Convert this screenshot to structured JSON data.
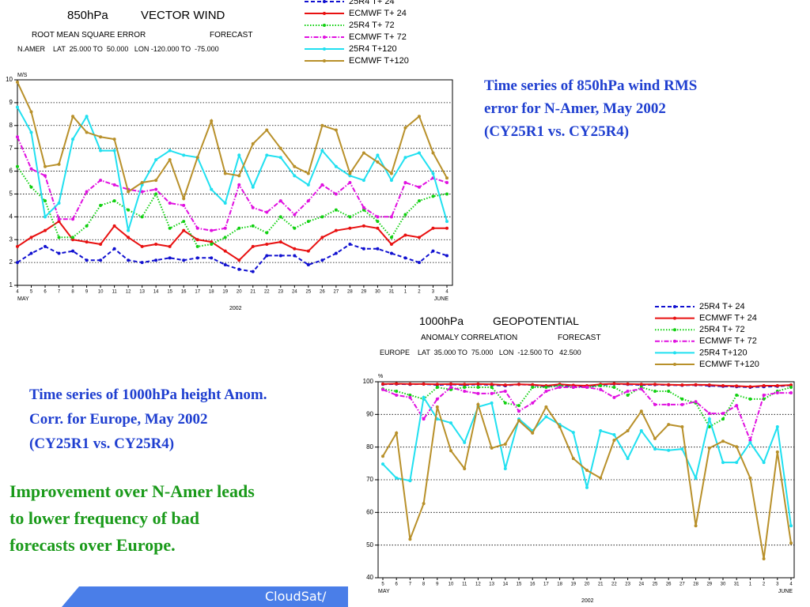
{
  "chart_data": [
    {
      "type": "line",
      "title": "850hPa",
      "subtitle": "VECTOR WIND",
      "metric": "ROOT MEAN SQUARE ERROR",
      "forecast_label": "FORECAST",
      "region": "N.AMER    LAT  25.000 TO  50.000   LON -120.000 TO  -75.000",
      "y_unit": "M/S",
      "months": [
        "MAY",
        "JUNE"
      ],
      "year": "2002",
      "categories": [
        "4",
        "5",
        "6",
        "7",
        "8",
        "9",
        "10",
        "11",
        "12",
        "13",
        "14",
        "15",
        "16",
        "17",
        "18",
        "19",
        "20",
        "21",
        "22",
        "23",
        "24",
        "25",
        "26",
        "27",
        "28",
        "29",
        "30",
        "31",
        "1",
        "2",
        "3",
        "4"
      ],
      "ylim": [
        1,
        10
      ],
      "yticks": [
        1,
        2,
        3,
        4,
        5,
        6,
        7,
        8,
        9,
        10
      ],
      "grid": true,
      "series": [
        {
          "name": "25R4  T+ 24",
          "color": "#1010d0",
          "dash": "dashed",
          "values": [
            2.0,
            2.4,
            2.7,
            2.4,
            2.5,
            2.1,
            2.1,
            2.6,
            2.1,
            2.0,
            2.1,
            2.2,
            2.1,
            2.2,
            2.2,
            1.9,
            1.7,
            1.6,
            2.3,
            2.3,
            2.3,
            1.9,
            2.1,
            2.4,
            2.8,
            2.6,
            2.6,
            2.4,
            2.2,
            2.0,
            2.5,
            2.3
          ]
        },
        {
          "name": "ECMWF  T+ 24",
          "color": "#e81010",
          "dash": "solid",
          "values": [
            2.7,
            3.1,
            3.4,
            3.8,
            3.0,
            2.9,
            2.8,
            3.6,
            3.1,
            2.7,
            2.8,
            2.7,
            3.4,
            3.0,
            2.9,
            2.5,
            2.1,
            2.7,
            2.8,
            2.9,
            2.6,
            2.5,
            3.1,
            3.4,
            3.5,
            3.6,
            3.5,
            2.8,
            3.2,
            3.1,
            3.5,
            3.5
          ]
        },
        {
          "name": "25R4  T+ 72",
          "color": "#10d010",
          "dash": "dotted",
          "values": [
            6.2,
            5.3,
            4.7,
            3.1,
            3.1,
            3.6,
            4.5,
            4.7,
            4.3,
            4.0,
            5.0,
            3.5,
            3.8,
            2.7,
            2.8,
            3.1,
            3.5,
            3.6,
            3.3,
            4.0,
            3.5,
            3.8,
            4.0,
            4.3,
            4.0,
            4.3,
            3.8,
            3.1,
            4.1,
            4.7,
            4.9,
            5.0
          ]
        },
        {
          "name": "ECMWF  T+ 72",
          "color": "#e010e0",
          "dash": "dashdot",
          "values": [
            7.5,
            6.1,
            5.8,
            3.9,
            3.9,
            5.1,
            5.6,
            5.4,
            5.2,
            5.1,
            5.2,
            4.6,
            4.5,
            3.5,
            3.4,
            3.5,
            5.4,
            4.4,
            4.2,
            4.7,
            4.1,
            4.7,
            5.4,
            5.0,
            5.5,
            4.4,
            4.0,
            4.0,
            5.5,
            5.3,
            5.7,
            5.5
          ]
        },
        {
          "name": "25R4  T+120",
          "color": "#20e0f0",
          "dash": "solid",
          "values": [
            8.8,
            7.7,
            4.0,
            4.6,
            7.4,
            8.4,
            6.9,
            6.9,
            3.4,
            5.4,
            6.5,
            6.9,
            6.7,
            6.6,
            5.2,
            4.6,
            6.7,
            5.3,
            6.7,
            6.6,
            5.8,
            5.4,
            6.9,
            6.2,
            5.8,
            5.6,
            6.7,
            5.6,
            6.6,
            6.8,
            5.9,
            3.8
          ]
        },
        {
          "name": "ECMWF  T+120",
          "color": "#b8902a",
          "dash": "solid",
          "values": [
            9.9,
            8.6,
            6.2,
            6.3,
            8.4,
            7.7,
            7.5,
            7.4,
            5.1,
            5.5,
            5.6,
            6.5,
            4.8,
            6.6,
            8.2,
            5.9,
            5.8,
            7.2,
            7.8,
            7.0,
            6.2,
            5.9,
            8.0,
            7.8,
            5.9,
            6.8,
            6.4,
            5.9,
            7.9,
            8.4,
            6.8,
            5.7
          ]
        }
      ]
    },
    {
      "type": "line",
      "title": "1000hPa",
      "subtitle": "GEOPOTENTIAL",
      "metric": "ANOMALY CORRELATION",
      "forecast_label": "FORECAST",
      "region": "EUROPE    LAT  35.000 TO  75.000   LON  -12.500 TO   42.500",
      "y_unit": "%",
      "months": [
        "MAY",
        "JUNE"
      ],
      "year": "2002",
      "categories": [
        "5",
        "6",
        "7",
        "8",
        "9",
        "10",
        "11",
        "12",
        "13",
        "14",
        "15",
        "16",
        "17",
        "18",
        "19",
        "20",
        "21",
        "22",
        "23",
        "24",
        "25",
        "26",
        "27",
        "28",
        "29",
        "30",
        "31",
        "1",
        "2",
        "3",
        "4"
      ],
      "ylim": [
        40,
        100
      ],
      "yticks": [
        40,
        50,
        60,
        70,
        80,
        90,
        100
      ],
      "grid": true,
      "series": [
        {
          "name": "25R4  T+ 24",
          "color": "#1010d0",
          "dash": "dashed",
          "values": [
            99.2,
            99.3,
            99.2,
            99.3,
            99.0,
            99.2,
            99.0,
            99.2,
            99.0,
            98.8,
            99.2,
            99.0,
            98.5,
            99.0,
            98.6,
            98.5,
            99.0,
            99.3,
            99.2,
            99.0,
            99.1,
            99.0,
            98.9,
            99.0,
            98.8,
            98.6,
            98.5,
            98.3,
            98.5,
            98.6,
            98.9
          ]
        },
        {
          "name": "ECMWF  T+ 24",
          "color": "#e81010",
          "dash": "solid",
          "values": [
            99.3,
            99.4,
            99.3,
            99.3,
            99.2,
            99.3,
            99.2,
            99.3,
            99.2,
            99.0,
            99.2,
            99.1,
            98.8,
            99.2,
            98.9,
            98.8,
            99.2,
            99.4,
            99.3,
            99.2,
            99.2,
            99.1,
            99.0,
            99.1,
            99.0,
            98.8,
            98.7,
            98.5,
            98.8,
            98.8,
            99.0
          ]
        },
        {
          "name": "25R4  T+ 72",
          "color": "#10d010",
          "dash": "dotted",
          "values": [
            97.8,
            97.1,
            95.9,
            94.7,
            98.3,
            97.6,
            98.3,
            98.3,
            98.3,
            93.5,
            92.7,
            98.3,
            98.3,
            98.8,
            98.3,
            98.3,
            98.8,
            98.3,
            95.9,
            98.3,
            97.1,
            97.1,
            94.7,
            93.5,
            86.2,
            88.6,
            95.9,
            94.7,
            94.7,
            97.1,
            98.3
          ]
        },
        {
          "name": "ECMWF  T+ 72",
          "color": "#e010e0",
          "dash": "dashdot",
          "values": [
            97.6,
            95.9,
            95.2,
            88.6,
            94.7,
            98.3,
            97.1,
            96.4,
            96.4,
            97.1,
            91.0,
            93.5,
            97.1,
            98.3,
            98.3,
            98.3,
            97.6,
            95.2,
            97.1,
            97.8,
            93.0,
            93.0,
            93.0,
            93.9,
            90.3,
            90.3,
            92.7,
            82.1,
            95.9,
            96.6,
            96.6
          ]
        },
        {
          "name": "25R4  T+120",
          "color": "#20e0f0",
          "dash": "solid",
          "values": [
            74.8,
            70.5,
            69.7,
            95.2,
            88.6,
            87.4,
            81.4,
            92.3,
            93.5,
            73.4,
            88.6,
            85.0,
            89.3,
            86.9,
            84.5,
            67.6,
            85.0,
            83.8,
            76.5,
            85.0,
            79.4,
            79.0,
            79.4,
            70.5,
            88.6,
            75.3,
            75.3,
            81.4,
            75.3,
            86.2,
            55.9
          ]
        },
        {
          "name": "ECMWF  T+120",
          "color": "#b8902a",
          "dash": "solid",
          "values": [
            77.2,
            84.3,
            51.8,
            62.7,
            92.3,
            78.9,
            73.4,
            93.0,
            79.7,
            80.9,
            88.1,
            84.3,
            92.3,
            86.2,
            76.5,
            72.9,
            70.5,
            82.1,
            85.0,
            91.0,
            82.6,
            86.9,
            86.2,
            55.9,
            79.7,
            81.8,
            80.1,
            70.5,
            45.8,
            78.5,
            50.6
          ]
        }
      ]
    }
  ],
  "captions": [
    {
      "lines": [
        "Time series of 850hPa wind RMS",
        "error for N-Amer, May 2002",
        "(CY25R1 vs. CY25R4)"
      ]
    },
    {
      "lines": [
        "Time series of 1000hPa height Anom.",
        "Corr.  for Europe, May 2002",
        "(CY25R1 vs. CY25R4)"
      ]
    },
    {
      "lines": [
        "Improvement over N-Amer leads",
        "to lower frequency of bad",
        "forecasts over Europe."
      ]
    }
  ],
  "footer": "CloudSat/"
}
